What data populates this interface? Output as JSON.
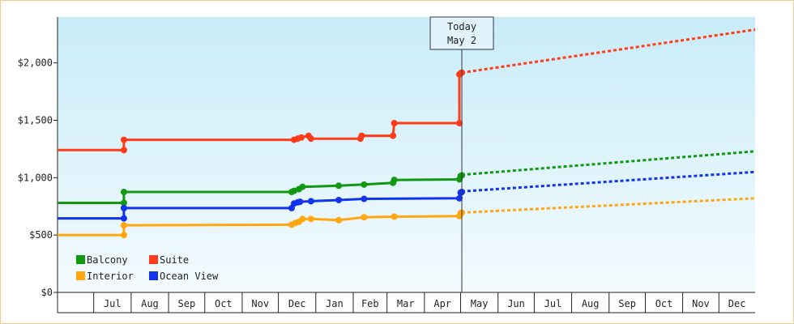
{
  "chart_data": {
    "type": "line",
    "title": "",
    "xlabel": "",
    "ylabel": "",
    "ylim": [
      0,
      2400
    ],
    "y_ticks": [
      {
        "value": 0,
        "label": "$0"
      },
      {
        "value": 500,
        "label": "$500"
      },
      {
        "value": 1000,
        "label": "$1,000"
      },
      {
        "value": 1500,
        "label": "$1,500"
      },
      {
        "value": 2000,
        "label": "$2,000"
      }
    ],
    "x_range": [
      "2024-06-01",
      "2025-12-31"
    ],
    "x_ticks": [
      {
        "date": "2024-07-01",
        "label": "Jul"
      },
      {
        "date": "2024-08-01",
        "label": "Aug"
      },
      {
        "date": "2024-09-01",
        "label": "Sep"
      },
      {
        "date": "2024-10-01",
        "label": "Oct"
      },
      {
        "date": "2024-11-01",
        "label": "Nov"
      },
      {
        "date": "2024-12-01",
        "label": "Dec"
      },
      {
        "date": "2025-01-01",
        "label": "Jan"
      },
      {
        "date": "2025-02-01",
        "label": "Feb"
      },
      {
        "date": "2025-03-01",
        "label": "Mar"
      },
      {
        "date": "2025-04-01",
        "label": "Apr"
      },
      {
        "date": "2025-05-01",
        "label": "May"
      },
      {
        "date": "2025-06-01",
        "label": "Jun"
      },
      {
        "date": "2025-07-01",
        "label": "Jul"
      },
      {
        "date": "2025-08-01",
        "label": "Aug"
      },
      {
        "date": "2025-09-01",
        "label": "Sep"
      },
      {
        "date": "2025-10-01",
        "label": "Oct"
      },
      {
        "date": "2025-11-01",
        "label": "Nov"
      },
      {
        "date": "2025-12-01",
        "label": "Dec"
      }
    ],
    "today": {
      "date": "2025-05-02",
      "line1": "Today",
      "line2": "May 2"
    },
    "legend_position": "bottom-left",
    "background_gradient": [
      "#c8ecf8",
      "#f4fbfe"
    ],
    "series": [
      {
        "name": "Suite",
        "color": "#ff3b1a",
        "history": [
          [
            "2024-06-01",
            1240
          ],
          [
            "2024-07-26",
            1240
          ],
          [
            "2024-07-26",
            1330
          ],
          [
            "2024-12-14",
            1330
          ],
          [
            "2024-12-17",
            1340
          ],
          [
            "2024-12-20",
            1350
          ],
          [
            "2024-12-26",
            1365
          ],
          [
            "2024-12-28",
            1340
          ],
          [
            "2025-02-07",
            1340
          ],
          [
            "2025-02-08",
            1365
          ],
          [
            "2025-03-06",
            1365
          ],
          [
            "2025-03-07",
            1475
          ],
          [
            "2025-04-30",
            1475
          ],
          [
            "2025-04-30",
            1900
          ],
          [
            "2025-05-01",
            1910
          ],
          [
            "2025-05-02",
            1915
          ]
        ],
        "forecast": [
          [
            "2025-05-02",
            1915
          ],
          [
            "2025-12-31",
            2290
          ]
        ]
      },
      {
        "name": "Balcony",
        "color": "#119911",
        "history": [
          [
            "2024-06-01",
            780
          ],
          [
            "2024-07-26",
            780
          ],
          [
            "2024-07-26",
            875
          ],
          [
            "2024-12-12",
            875
          ],
          [
            "2024-12-14",
            885
          ],
          [
            "2024-12-18",
            900
          ],
          [
            "2024-12-21",
            920
          ],
          [
            "2025-01-20",
            930
          ],
          [
            "2025-02-10",
            940
          ],
          [
            "2025-03-06",
            955
          ],
          [
            "2025-03-07",
            980
          ],
          [
            "2025-04-30",
            985
          ],
          [
            "2025-05-01",
            1015
          ],
          [
            "2025-05-02",
            1020
          ]
        ],
        "forecast": [
          [
            "2025-05-02",
            1025
          ],
          [
            "2025-12-31",
            1230
          ]
        ]
      },
      {
        "name": "Ocean View",
        "color": "#1133ee",
        "history": [
          [
            "2024-06-01",
            645
          ],
          [
            "2024-07-26",
            645
          ],
          [
            "2024-07-26",
            735
          ],
          [
            "2024-12-12",
            735
          ],
          [
            "2024-12-14",
            775
          ],
          [
            "2024-12-17",
            785
          ],
          [
            "2024-12-19",
            790
          ],
          [
            "2024-12-28",
            795
          ],
          [
            "2025-01-20",
            805
          ],
          [
            "2025-02-10",
            815
          ],
          [
            "2025-04-30",
            820
          ],
          [
            "2025-05-01",
            870
          ],
          [
            "2025-05-02",
            875
          ]
        ],
        "forecast": [
          [
            "2025-05-02",
            880
          ],
          [
            "2025-12-31",
            1050
          ]
        ]
      },
      {
        "name": "Interior",
        "color": "#ffa611",
        "history": [
          [
            "2024-06-01",
            500
          ],
          [
            "2024-07-26",
            500
          ],
          [
            "2024-07-26",
            585
          ],
          [
            "2024-12-12",
            590
          ],
          [
            "2024-12-15",
            605
          ],
          [
            "2024-12-18",
            615
          ],
          [
            "2024-12-21",
            640
          ],
          [
            "2024-12-28",
            640
          ],
          [
            "2025-01-20",
            630
          ],
          [
            "2025-02-10",
            655
          ],
          [
            "2025-03-07",
            660
          ],
          [
            "2025-04-30",
            665
          ],
          [
            "2025-05-01",
            690
          ],
          [
            "2025-05-02",
            695
          ]
        ],
        "forecast": [
          [
            "2025-05-02",
            695
          ],
          [
            "2025-12-31",
            820
          ]
        ]
      }
    ],
    "legend": [
      {
        "name": "Balcony",
        "color": "#119911"
      },
      {
        "name": "Suite",
        "color": "#ff3b1a"
      },
      {
        "name": "Interior",
        "color": "#ffa611"
      },
      {
        "name": "Ocean View",
        "color": "#1133ee"
      }
    ]
  }
}
